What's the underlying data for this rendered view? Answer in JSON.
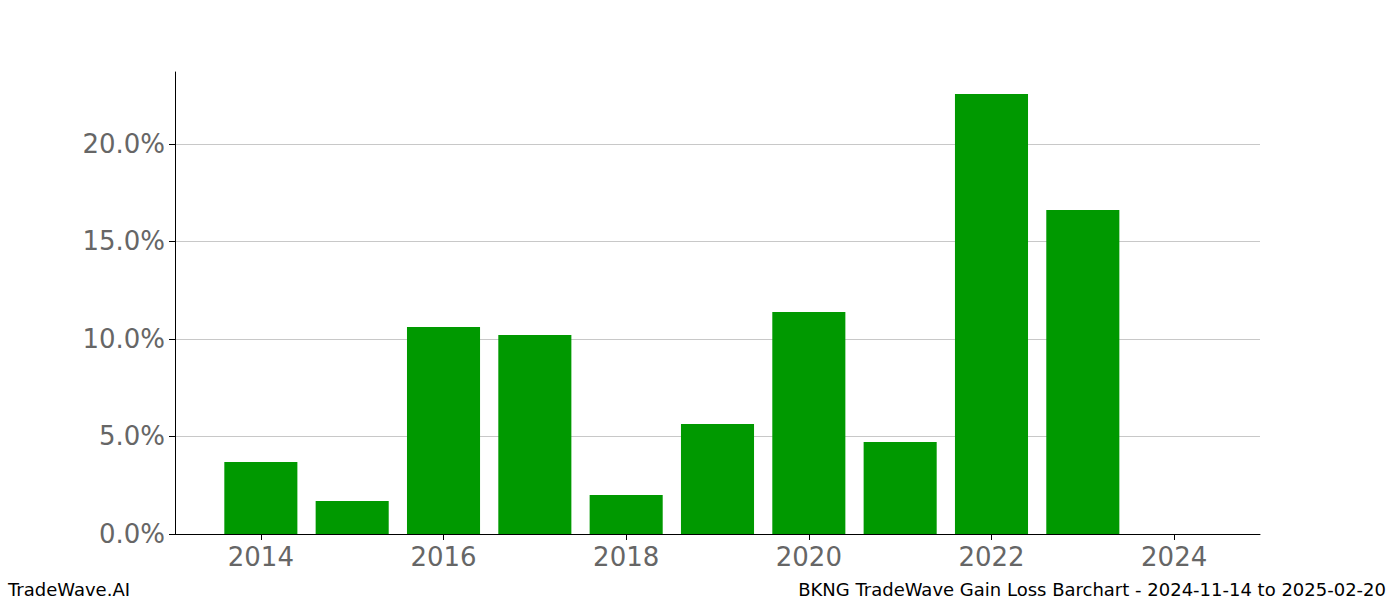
{
  "chart_data": {
    "type": "bar",
    "title": "BKNG TradeWave Gain Loss Barchart - 2024-11-14 to 2025-02-20",
    "annotations": [
      "TradeWave.AI"
    ],
    "x": [
      2014,
      2015,
      2016,
      2017,
      2018,
      2019,
      2020,
      2021,
      2022,
      2023,
      2024
    ],
    "values": [
      3.69,
      1.69,
      10.62,
      10.2,
      2.0,
      5.64,
      11.38,
      4.72,
      22.56,
      16.62,
      0
    ],
    "color": "#009900",
    "xlim": [
      2013.06,
      2024.94
    ],
    "xticks": [
      2014,
      2016,
      2018,
      2020,
      2022,
      2024
    ],
    "ylim": [
      0,
      23.69
    ],
    "yticks": [
      {
        "value": 0,
        "label": "0.0%"
      },
      {
        "value": 5,
        "label": "5.0%"
      },
      {
        "value": 10,
        "label": "10.0%"
      },
      {
        "value": 15,
        "label": "15.0%"
      },
      {
        "value": 20,
        "label": "20.0%"
      }
    ],
    "grid": true
  }
}
